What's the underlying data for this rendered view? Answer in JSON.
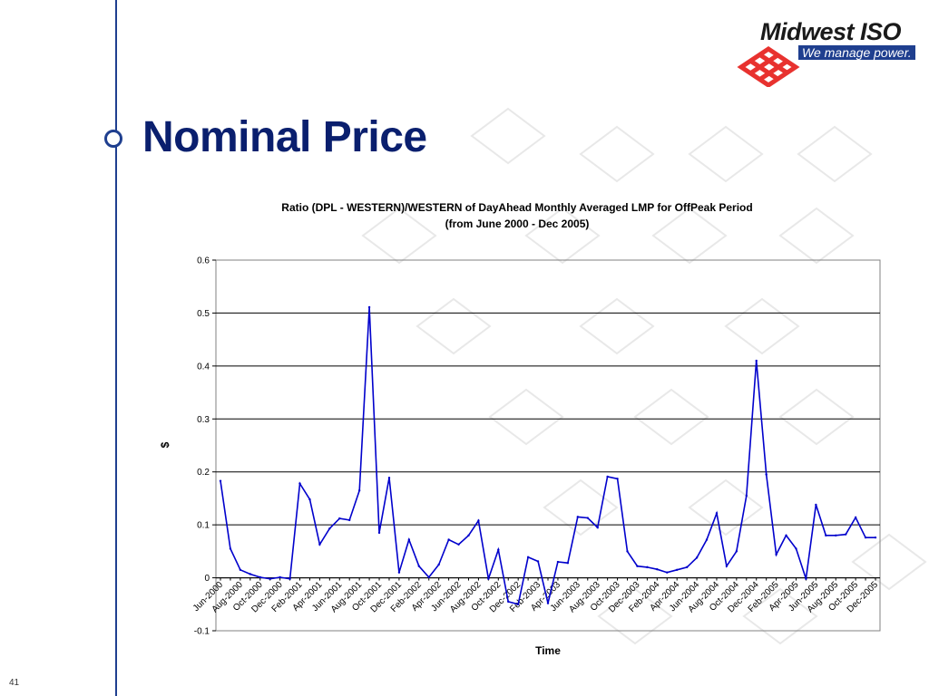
{
  "slide": {
    "title": "Nominal Price",
    "page_number": "41",
    "accent_color": "#1f3f8f",
    "title_color": "#0a1f6e"
  },
  "logo": {
    "name": "Midwest ISO",
    "tagline": "We manage power.",
    "mark_color": "#e8322f"
  },
  "chart_data": {
    "type": "line",
    "title": "Ratio (DPL - WESTERN)/WESTERN of DayAhead Monthly Averaged LMP for OffPeak Period",
    "subtitle": "(from June 2000 - Dec 2005)",
    "xlabel": "Time",
    "ylabel": "$",
    "ylim": [
      -0.1,
      0.6
    ],
    "yticks": [
      "-0.1",
      "0",
      "0.1",
      "0.2",
      "0.3",
      "0.4",
      "0.5",
      "0.6"
    ],
    "grid": true,
    "line_color": "#0000cc",
    "xtick_labels": [
      "Jun-2000",
      "Aug-2000",
      "Oct-2000",
      "Dec-2000",
      "Feb-2001",
      "Apr-2001",
      "Jun-2001",
      "Aug-2001",
      "Oct-2001",
      "Dec-2001",
      "Feb-2002",
      "Apr-2002",
      "Jun-2002",
      "Aug-2002",
      "Oct-2002",
      "Dec-2002",
      "Feb-2003",
      "Apr-2003",
      "Jun-2003",
      "Aug-2003",
      "Oct-2003",
      "Dec-2003",
      "Feb-2004",
      "Apr-2004",
      "Jun-2004",
      "Aug-2004",
      "Oct-2004",
      "Dec-2004",
      "Feb-2005",
      "Apr-2005",
      "Jun-2005",
      "Aug-2005",
      "Oct-2005",
      "Dec-2005"
    ],
    "series": [
      {
        "values": [
          0.183,
          0.055,
          0.015,
          0.007,
          0.001,
          -0.002,
          0.001,
          -0.002,
          0.178,
          0.148,
          0.063,
          0.093,
          0.112,
          0.109,
          0.165,
          0.511,
          0.085,
          0.189,
          0.01,
          0.072,
          0.022,
          0.001,
          0.025,
          0.072,
          0.063,
          0.08,
          0.108,
          -0.002,
          0.053,
          -0.045,
          -0.05,
          0.039,
          0.031,
          -0.048,
          0.03,
          0.028,
          0.115,
          0.113,
          0.095,
          0.191,
          0.187,
          0.05,
          0.022,
          0.02,
          0.016,
          0.01,
          0.015,
          0.02,
          0.038,
          0.072,
          0.122,
          0.022,
          0.05,
          0.155,
          0.41,
          0.195,
          0.044,
          0.08,
          0.055,
          -0.002,
          0.138,
          0.08,
          0.08,
          0.082,
          0.114,
          0.076,
          0.076
        ]
      }
    ]
  }
}
